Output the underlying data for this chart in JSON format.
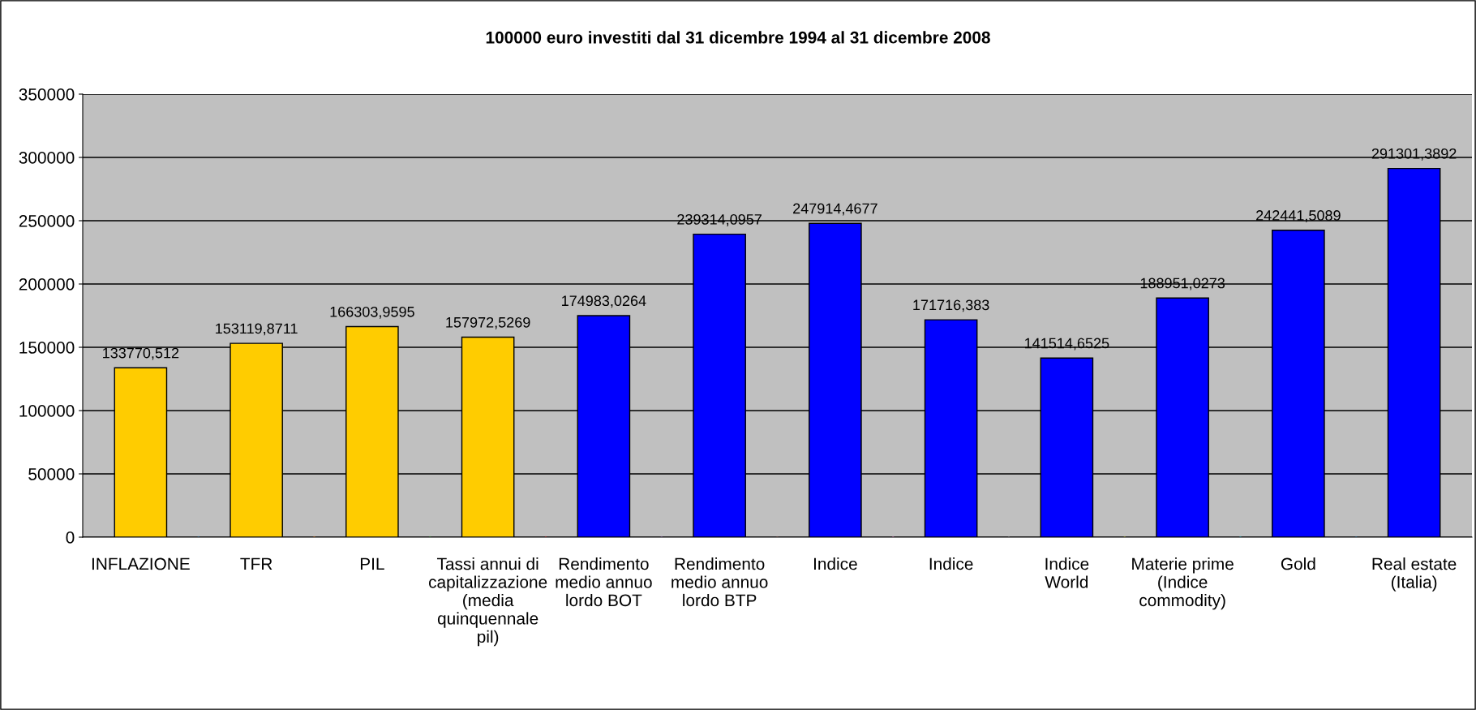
{
  "chart_data": {
    "type": "bar",
    "title": "100000 euro investiti dal 31 dicembre 1994 al 31 dicembre 2008",
    "categories": [
      "INFLAZIONE",
      "TFR",
      "PIL",
      "Tassi annui di\ncapitalizzazione\n(media\nquinquennale\npil)",
      "Rendimento\nmedio annuo\nlordo BOT",
      "Rendimento\nmedio annuo\nlordo BTP",
      "Indice",
      "Indice",
      "Indice\nWorld",
      "Materie prime\n(Indice\ncommodity)",
      "Gold",
      "Real estate\n(Italia)"
    ],
    "values": [
      133770.512,
      153119.8711,
      166303.9595,
      157972.5269,
      174983.0264,
      239314.0957,
      247914.4677,
      171716.383,
      141514.6525,
      188951.0273,
      242441.5089,
      291301.3892
    ],
    "value_labels": [
      "133770,512",
      "153119,8711",
      "166303,9595",
      "157972,5269",
      "174983,0264",
      "239314,0957",
      "247914,4677",
      "171716,383",
      "141514,6525",
      "188951,0273",
      "242441,5089",
      "291301,3892"
    ],
    "colors": [
      "#ffcc00",
      "#ffcc00",
      "#ffcc00",
      "#ffcc00",
      "#0000ff",
      "#0000ff",
      "#0000ff",
      "#0000ff",
      "#0000ff",
      "#0000ff",
      "#0000ff",
      "#0000ff"
    ],
    "ylim": [
      0,
      350000
    ],
    "yticks": [
      0,
      50000,
      100000,
      150000,
      200000,
      250000,
      300000,
      350000
    ],
    "grid": "y",
    "legend": false
  }
}
